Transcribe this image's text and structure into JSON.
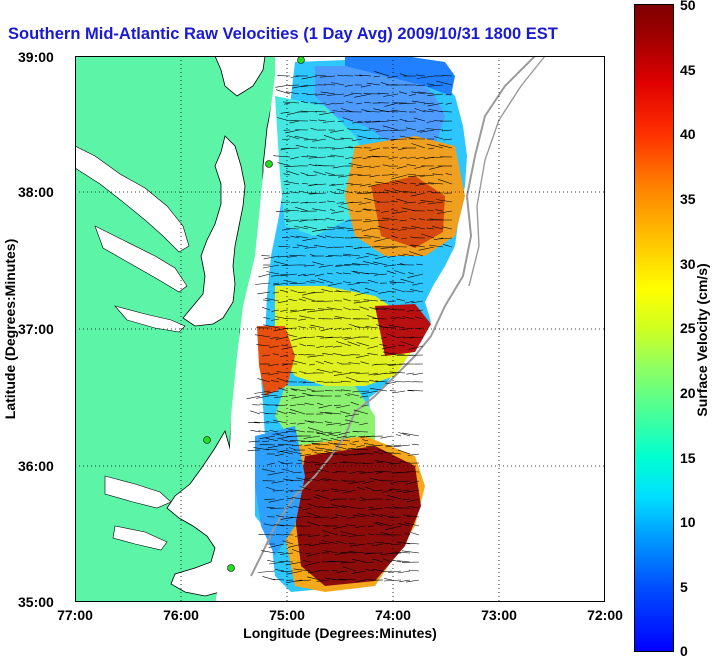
{
  "title": "Southern Mid-Atlantic Raw Velocities (1 Day Avg) 2009/10/31 1800 EST",
  "x_axis": {
    "label": "Longitude (Degrees:Minutes)",
    "ticks": [
      "77:00",
      "76:00",
      "75:00",
      "74:00",
      "73:00",
      "72:00"
    ]
  },
  "y_axis": {
    "label": "Latitude (Degrees:Minutes)",
    "ticks": [
      "39:00",
      "38:00",
      "37:00",
      "36:00",
      "35:00"
    ]
  },
  "colorbar": {
    "label": "Surface Velocity (cm/s)",
    "ticks": [
      "50",
      "45",
      "40",
      "35",
      "30",
      "25",
      "20",
      "15",
      "10",
      "5",
      "0"
    ],
    "range": [
      0,
      50
    ]
  },
  "map": {
    "land_color": "#5cf5a8",
    "coast_color": "#000000",
    "isobath_color": "#9a9a9a",
    "grid": true,
    "station_marker_color": "#22dd22",
    "lon_range": [
      -77,
      -72
    ],
    "lat_range": [
      35,
      39
    ]
  }
}
